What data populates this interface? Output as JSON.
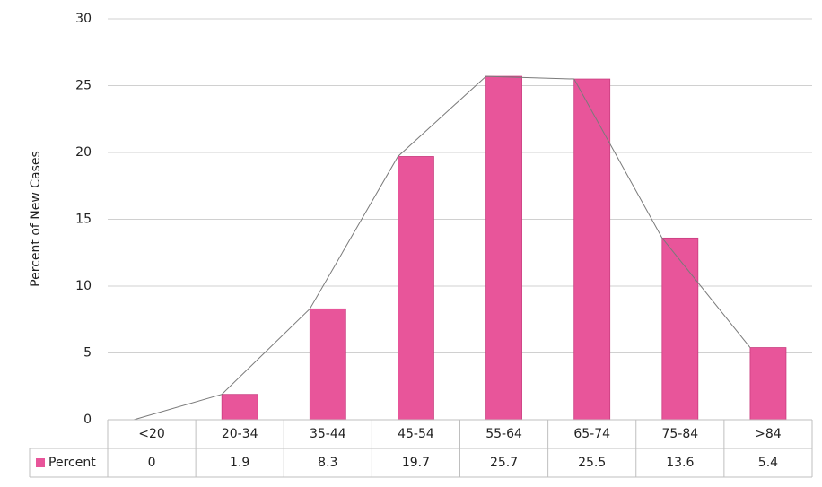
{
  "chart_data": {
    "type": "bar",
    "y_label": "Percent of New Cases",
    "categories": [
      "<20",
      "20-34",
      "35-44",
      "45-54",
      "55-64",
      "65-74",
      "75-84",
      ">84"
    ],
    "series": [
      {
        "name": "Percent",
        "color": "#e8559a",
        "values": [
          0,
          1.9,
          8.3,
          19.7,
          25.7,
          25.5,
          13.6,
          5.4
        ]
      }
    ],
    "ylim": [
      0,
      30
    ],
    "yticks": [
      0,
      5,
      10,
      15,
      20,
      25,
      30
    ],
    "grid": true,
    "line_overlay": true,
    "data_table": true
  }
}
